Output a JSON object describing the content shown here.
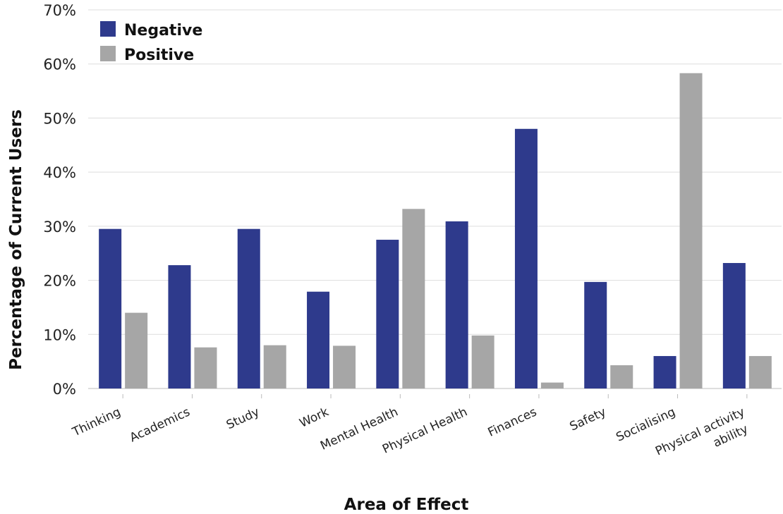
{
  "chart_data": {
    "type": "bar",
    "title": "",
    "xlabel": "Area of Effect",
    "ylabel": "Percentage of Current Users",
    "ylim": [
      0,
      70
    ],
    "y_ticks": [
      "0%",
      "10%",
      "20%",
      "30%",
      "40%",
      "50%",
      "60%",
      "70%"
    ],
    "categories": [
      [
        "Thinking"
      ],
      [
        "Academics"
      ],
      [
        "Study"
      ],
      [
        "Work"
      ],
      [
        "Mental Health"
      ],
      [
        "Physical Health"
      ],
      [
        "Finances"
      ],
      [
        "Safety"
      ],
      [
        "Socialising"
      ],
      [
        "Physical activity",
        "ability"
      ]
    ],
    "series": [
      {
        "name": "Negative",
        "color": "#2e3a8c",
        "values": [
          29.5,
          22.8,
          29.5,
          17.9,
          27.5,
          30.9,
          48.0,
          19.7,
          6.0,
          23.2
        ]
      },
      {
        "name": "Positive",
        "color": "#a6a6a6",
        "values": [
          14.0,
          7.6,
          8.0,
          7.9,
          33.2,
          9.8,
          1.1,
          4.3,
          58.3,
          6.0
        ]
      }
    ],
    "grid": true,
    "legend_position": "top-left"
  }
}
